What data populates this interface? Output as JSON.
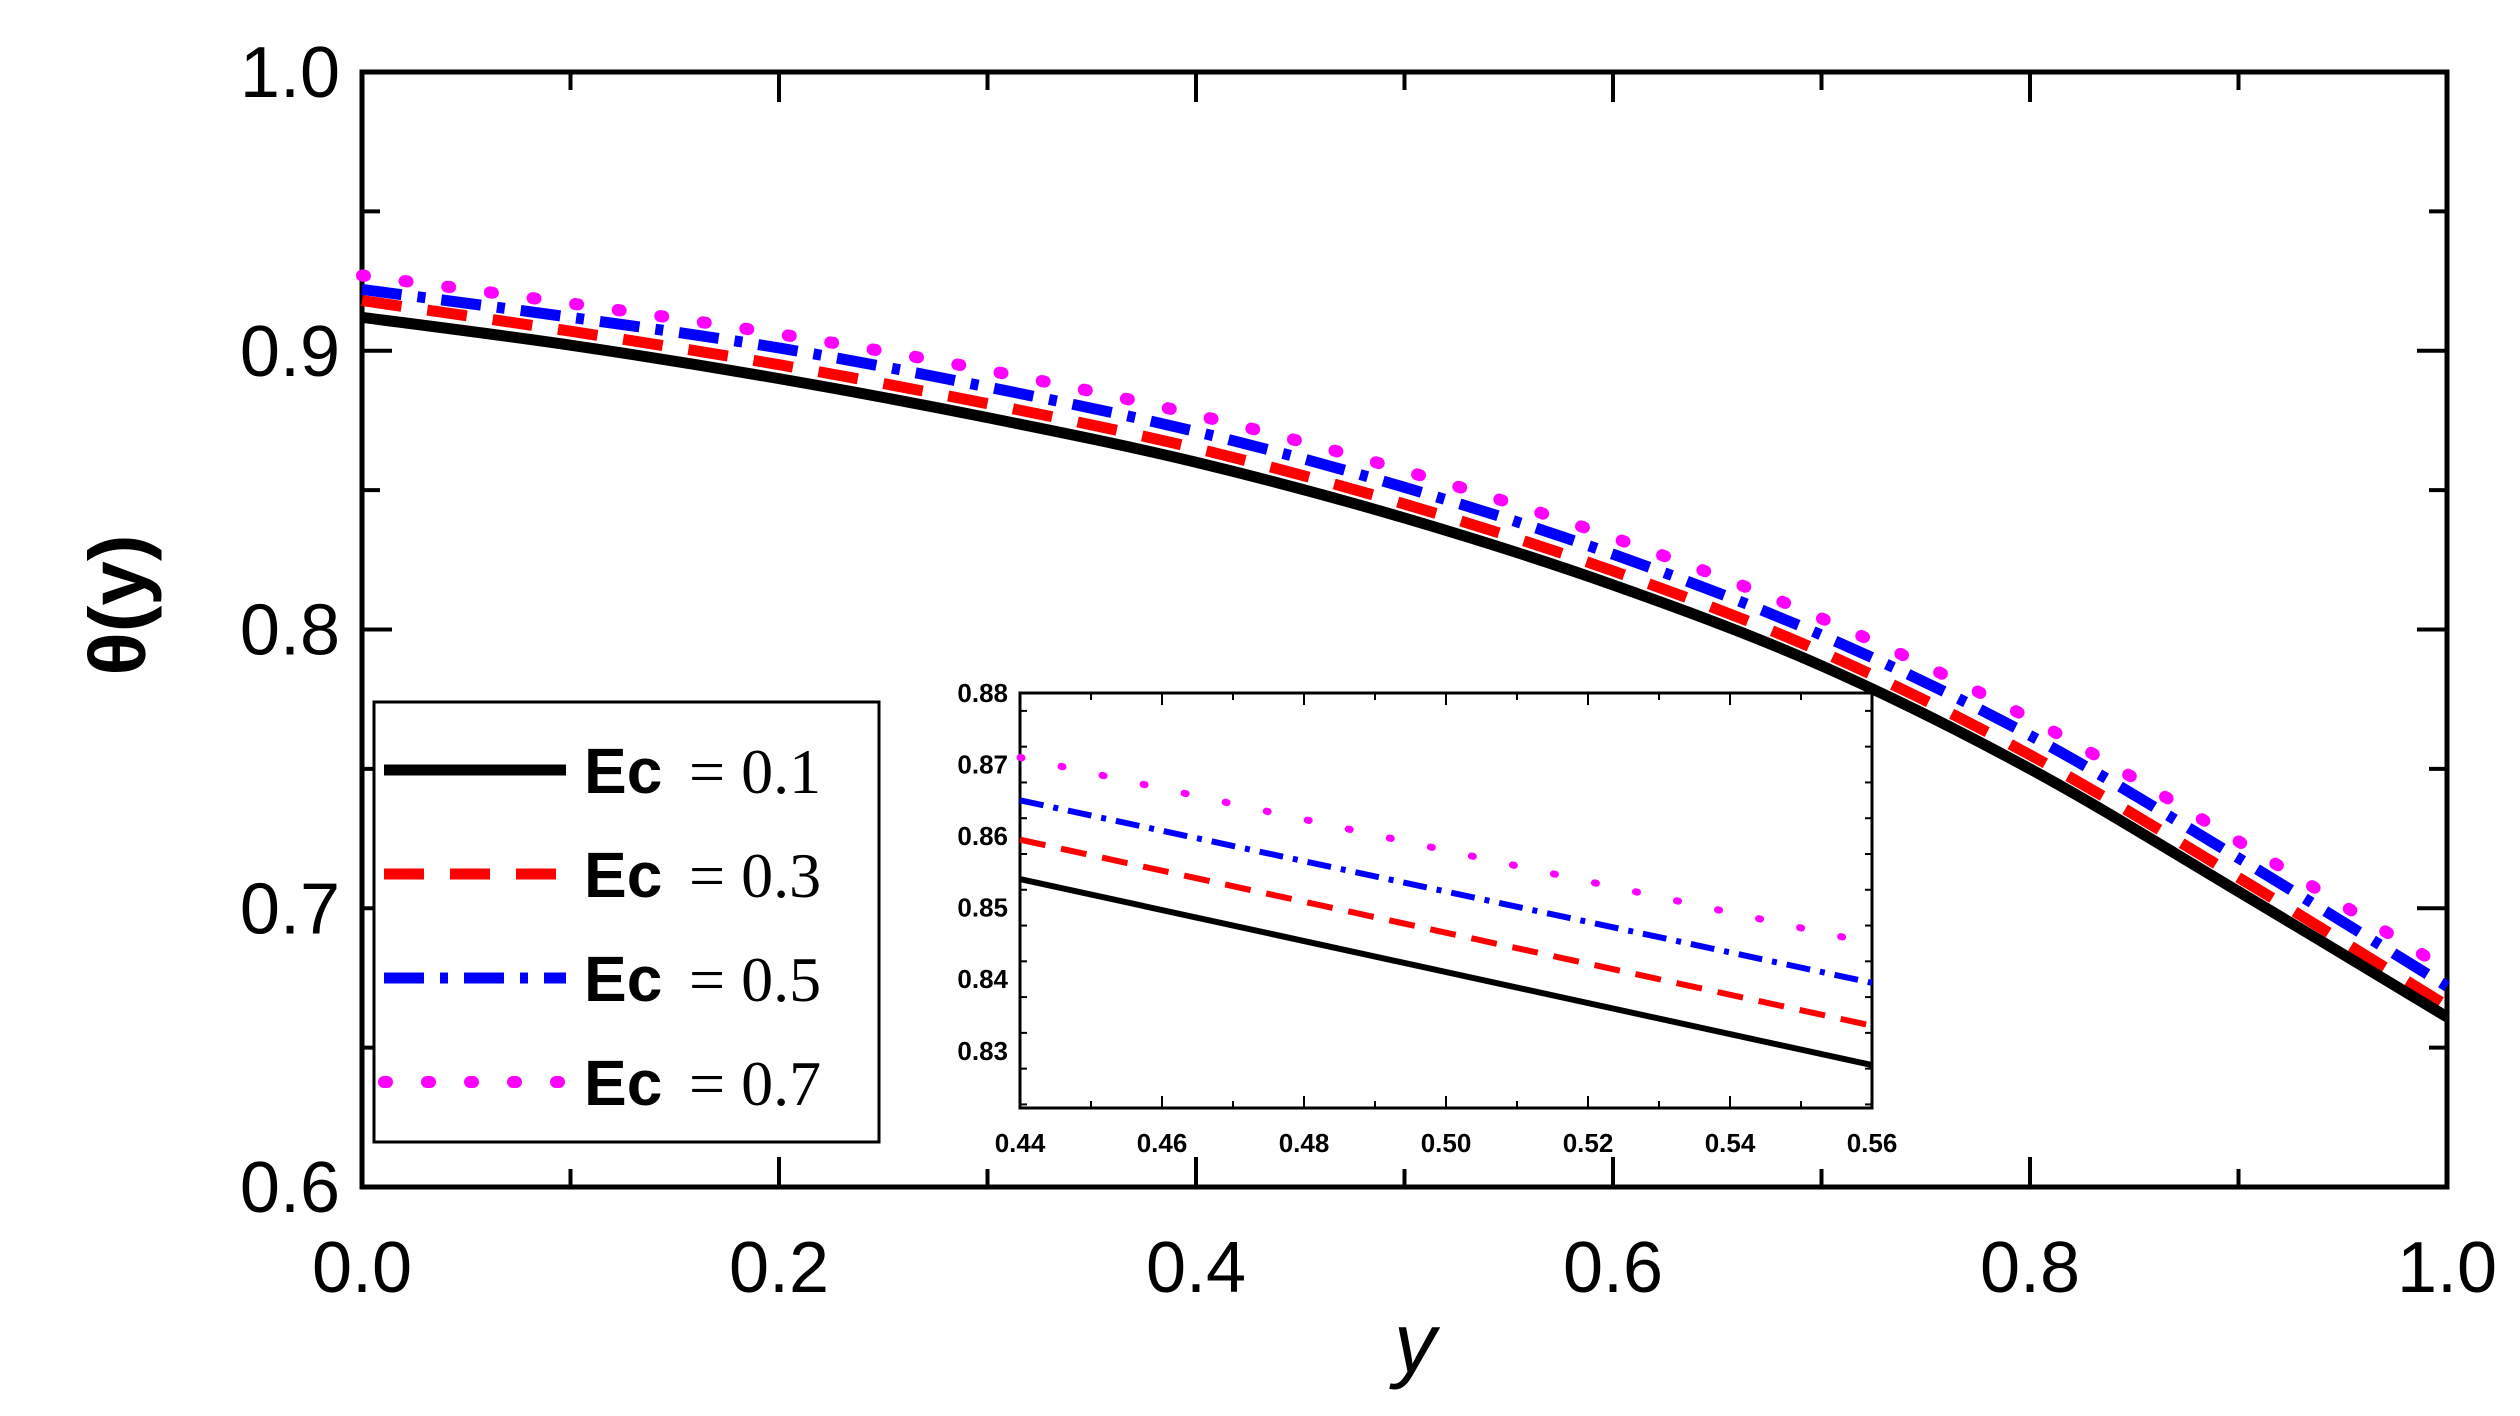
{
  "chart_data": {
    "type": "line",
    "title": "",
    "xlabel": "y",
    "ylabel": "θ(y)",
    "xlim": [
      0.0,
      1.0
    ],
    "ylim": [
      0.6,
      1.0
    ],
    "xticks": [
      "0.0",
      "0.2",
      "0.4",
      "0.6",
      "0.8",
      "1.0"
    ],
    "yticks": [
      "0.6",
      "0.7",
      "0.8",
      "0.9",
      "1.0"
    ],
    "legend_position": "bottom-left",
    "series": [
      {
        "name": "Ec",
        "value_label": "= 0.1",
        "color": "#000000",
        "style": "solid",
        "x": [
          0,
          0.1,
          0.2,
          0.3,
          0.4,
          0.5,
          0.6,
          0.7,
          0.8,
          0.9,
          1.0
        ],
        "y": [
          0.912,
          0.902,
          0.89,
          0.876,
          0.86,
          0.84,
          0.816,
          0.787,
          0.75,
          0.706,
          0.661
        ]
      },
      {
        "name": "Ec",
        "value_label": "= 0.3",
        "color": "#ff0000",
        "style": "dashed",
        "x": [
          0,
          0.1,
          0.2,
          0.3,
          0.4,
          0.5,
          0.6,
          0.7,
          0.8,
          0.9,
          1.0
        ],
        "y": [
          0.918,
          0.907,
          0.895,
          0.881,
          0.865,
          0.845,
          0.821,
          0.792,
          0.755,
          0.711,
          0.665
        ]
      },
      {
        "name": "Ec",
        "value_label": "= 0.5",
        "color": "#0000ff",
        "style": "dashdot",
        "x": [
          0,
          0.1,
          0.2,
          0.3,
          0.4,
          0.5,
          0.6,
          0.7,
          0.8,
          0.9,
          1.0
        ],
        "y": [
          0.922,
          0.912,
          0.901,
          0.887,
          0.871,
          0.851,
          0.827,
          0.798,
          0.762,
          0.718,
          0.672
        ]
      },
      {
        "name": "Ec",
        "value_label": "= 0.7",
        "color": "#ff00ff",
        "style": "dotted",
        "x": [
          0,
          0.1,
          0.2,
          0.3,
          0.4,
          0.5,
          0.6,
          0.7,
          0.8,
          0.9,
          1.0
        ],
        "y": [
          0.927,
          0.917,
          0.906,
          0.893,
          0.877,
          0.857,
          0.833,
          0.804,
          0.768,
          0.724,
          0.678
        ]
      }
    ],
    "inset": {
      "xlim": [
        0.44,
        0.56
      ],
      "ylim": [
        0.822,
        0.88
      ],
      "xticks": [
        "0.44",
        "0.46",
        "0.48",
        "0.50",
        "0.52",
        "0.54",
        "0.56"
      ],
      "yticks": [
        "0.83",
        "0.84",
        "0.85",
        "0.86",
        "0.87",
        "0.88"
      ],
      "series": [
        {
          "x": [
            0.44,
            0.56
          ],
          "y": [
            0.854,
            0.828
          ]
        },
        {
          "x": [
            0.44,
            0.56
          ],
          "y": [
            0.8595,
            0.8335
          ]
        },
        {
          "x": [
            0.44,
            0.56
          ],
          "y": [
            0.865,
            0.8395
          ]
        },
        {
          "x": [
            0.44,
            0.56
          ],
          "y": [
            0.871,
            0.845
          ]
        }
      ]
    }
  }
}
